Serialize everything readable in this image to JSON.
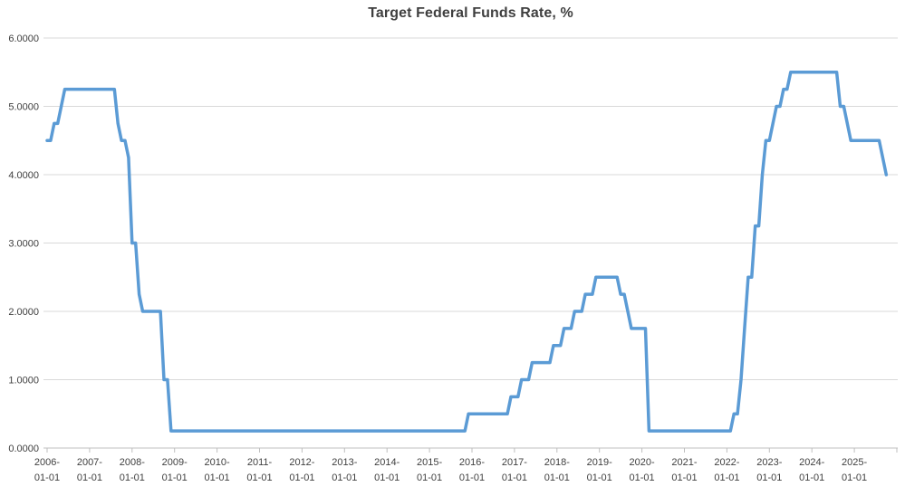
{
  "chart_data": {
    "type": "line",
    "title": "Target Federal Funds Rate, %",
    "series_name": "Target Federal Funds Rate",
    "legend": "none",
    "grid": "horizontal",
    "ylim": [
      0,
      6
    ],
    "y_tick_labels": [
      "0.0000",
      "1.0000",
      "2.0000",
      "3.0000",
      "4.0000",
      "5.0000",
      "6.0000"
    ],
    "x_tick_labels": [
      [
        "2006-",
        "01-01"
      ],
      [
        "2007-",
        "01-01"
      ],
      [
        "2008-",
        "01-01"
      ],
      [
        "2009-",
        "01-01"
      ],
      [
        "2010-",
        "01-01"
      ],
      [
        "2011-",
        "01-01"
      ],
      [
        "2012-",
        "01-01"
      ],
      [
        "2013-",
        "01-01"
      ],
      [
        "2014-",
        "01-01"
      ],
      [
        "2015-",
        "01-01"
      ],
      [
        "2016-",
        "01-01"
      ],
      [
        "2017-",
        "01-01"
      ],
      [
        "2018-",
        "01-01"
      ],
      [
        "2019-",
        "01-01"
      ],
      [
        "2020-",
        "01-01"
      ],
      [
        "2021-",
        "01-01"
      ],
      [
        "2022-",
        "01-01"
      ],
      [
        "2023-",
        "01-01"
      ],
      [
        "2024-",
        "01-01"
      ],
      [
        "2025-",
        "01-01"
      ]
    ],
    "x_range": [
      "2006-01-01",
      "2025-10-01"
    ],
    "monthly_values": [
      {
        "year": 2006,
        "values": [
          4.5,
          4.5,
          4.75,
          4.75,
          5.0,
          5.25,
          5.25,
          5.25,
          5.25,
          5.25,
          5.25,
          5.25
        ]
      },
      {
        "year": 2007,
        "values": [
          5.25,
          5.25,
          5.25,
          5.25,
          5.25,
          5.25,
          5.25,
          5.25,
          4.75,
          4.5,
          4.5,
          4.25
        ]
      },
      {
        "year": 2008,
        "values": [
          3.0,
          3.0,
          2.25,
          2.0,
          2.0,
          2.0,
          2.0,
          2.0,
          2.0,
          1.0,
          1.0,
          0.25
        ]
      },
      {
        "year": 2009,
        "values": [
          0.25,
          0.25,
          0.25,
          0.25,
          0.25,
          0.25,
          0.25,
          0.25,
          0.25,
          0.25,
          0.25,
          0.25
        ]
      },
      {
        "year": 2010,
        "values": [
          0.25,
          0.25,
          0.25,
          0.25,
          0.25,
          0.25,
          0.25,
          0.25,
          0.25,
          0.25,
          0.25,
          0.25
        ]
      },
      {
        "year": 2011,
        "values": [
          0.25,
          0.25,
          0.25,
          0.25,
          0.25,
          0.25,
          0.25,
          0.25,
          0.25,
          0.25,
          0.25,
          0.25
        ]
      },
      {
        "year": 2012,
        "values": [
          0.25,
          0.25,
          0.25,
          0.25,
          0.25,
          0.25,
          0.25,
          0.25,
          0.25,
          0.25,
          0.25,
          0.25
        ]
      },
      {
        "year": 2013,
        "values": [
          0.25,
          0.25,
          0.25,
          0.25,
          0.25,
          0.25,
          0.25,
          0.25,
          0.25,
          0.25,
          0.25,
          0.25
        ]
      },
      {
        "year": 2014,
        "values": [
          0.25,
          0.25,
          0.25,
          0.25,
          0.25,
          0.25,
          0.25,
          0.25,
          0.25,
          0.25,
          0.25,
          0.25
        ]
      },
      {
        "year": 2015,
        "values": [
          0.25,
          0.25,
          0.25,
          0.25,
          0.25,
          0.25,
          0.25,
          0.25,
          0.25,
          0.25,
          0.25,
          0.5
        ]
      },
      {
        "year": 2016,
        "values": [
          0.5,
          0.5,
          0.5,
          0.5,
          0.5,
          0.5,
          0.5,
          0.5,
          0.5,
          0.5,
          0.5,
          0.75
        ]
      },
      {
        "year": 2017,
        "values": [
          0.75,
          0.75,
          1.0,
          1.0,
          1.0,
          1.25,
          1.25,
          1.25,
          1.25,
          1.25,
          1.25,
          1.5
        ]
      },
      {
        "year": 2018,
        "values": [
          1.5,
          1.5,
          1.75,
          1.75,
          1.75,
          2.0,
          2.0,
          2.0,
          2.25,
          2.25,
          2.25,
          2.5
        ]
      },
      {
        "year": 2019,
        "values": [
          2.5,
          2.5,
          2.5,
          2.5,
          2.5,
          2.5,
          2.25,
          2.25,
          2.0,
          1.75,
          1.75,
          1.75
        ]
      },
      {
        "year": 2020,
        "values": [
          1.75,
          1.75,
          0.25,
          0.25,
          0.25,
          0.25,
          0.25,
          0.25,
          0.25,
          0.25,
          0.25,
          0.25
        ]
      },
      {
        "year": 2021,
        "values": [
          0.25,
          0.25,
          0.25,
          0.25,
          0.25,
          0.25,
          0.25,
          0.25,
          0.25,
          0.25,
          0.25,
          0.25
        ]
      },
      {
        "year": 2022,
        "values": [
          0.25,
          0.25,
          0.5,
          0.5,
          1.0,
          1.75,
          2.5,
          2.5,
          3.25,
          3.25,
          4.0,
          4.5
        ]
      },
      {
        "year": 2023,
        "values": [
          4.5,
          4.75,
          5.0,
          5.0,
          5.25,
          5.25,
          5.5,
          5.5,
          5.5,
          5.5,
          5.5,
          5.5
        ]
      },
      {
        "year": 2024,
        "values": [
          5.5,
          5.5,
          5.5,
          5.5,
          5.5,
          5.5,
          5.5,
          5.5,
          5.0,
          5.0,
          4.75,
          4.5
        ]
      },
      {
        "year": 2025,
        "values": [
          4.5,
          4.5,
          4.5,
          4.5,
          4.5,
          4.5,
          4.5,
          4.5,
          4.25,
          4.0
        ]
      }
    ],
    "colors": {
      "line": "#5B9BD5",
      "gridline": "#D9D9D9",
      "axis": "#BFBFBF",
      "labels": "#404040",
      "title": "#3F3F3F",
      "background": "#FFFFFF"
    }
  }
}
